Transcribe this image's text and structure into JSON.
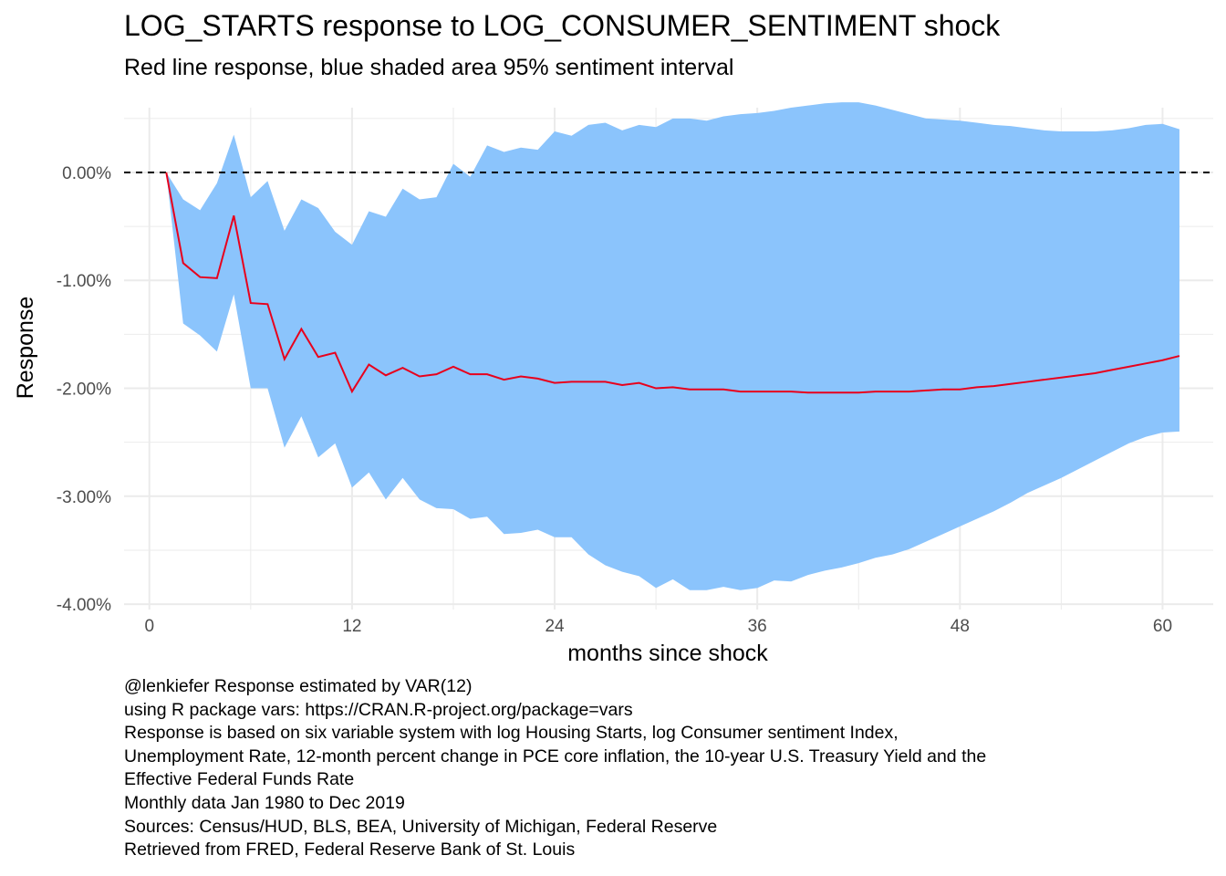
{
  "chart_data": {
    "type": "line",
    "title": "LOG_STARTS response to LOG_CONSUMER_SENTIMENT shock",
    "subtitle": "Red line response, blue shaded area 95% sentiment interval",
    "xlabel": "months since shock",
    "ylabel": "Response",
    "xlim": [
      -1.5,
      63
    ],
    "ylim": [
      -0.0405,
      0.006
    ],
    "x_ticks": [
      0,
      12,
      24,
      36,
      48,
      60
    ],
    "x_tick_labels": [
      "0",
      "12",
      "24",
      "36",
      "48",
      "60"
    ],
    "y_ticks": [
      0,
      -0.01,
      -0.02,
      -0.03,
      -0.04
    ],
    "y_tick_labels": [
      "0.00%",
      "-1.00%",
      "-2.00%",
      "-3.00%",
      "-4.00%"
    ],
    "grid": true,
    "reference_line": 0,
    "colors": {
      "line": "#e8001c",
      "band": "#8bc4fc",
      "reference": "#000000",
      "grid": "#ebebeb"
    },
    "x": [
      1,
      2,
      3,
      4,
      5,
      6,
      7,
      8,
      9,
      10,
      11,
      12,
      13,
      14,
      15,
      16,
      17,
      18,
      19,
      20,
      21,
      22,
      23,
      24,
      25,
      26,
      27,
      28,
      29,
      30,
      31,
      32,
      33,
      34,
      35,
      36,
      37,
      38,
      39,
      40,
      41,
      42,
      43,
      44,
      45,
      46,
      47,
      48,
      49,
      50,
      51,
      52,
      53,
      54,
      55,
      56,
      57,
      58,
      59,
      60,
      61
    ],
    "series": [
      {
        "values": [
          0,
          -0.0084,
          -0.0097,
          -0.0098,
          -0.004,
          -0.0121,
          -0.0122,
          -0.0173,
          -0.0145,
          -0.0171,
          -0.0167,
          -0.0203,
          -0.0178,
          -0.0188,
          -0.0181,
          -0.0189,
          -0.0187,
          -0.018,
          -0.0187,
          -0.0187,
          -0.0192,
          -0.0189,
          -0.0191,
          -0.0195,
          -0.0194,
          -0.0194,
          -0.0194,
          -0.0197,
          -0.0195,
          -0.02,
          -0.0199,
          -0.0201,
          -0.0201,
          -0.0201,
          -0.0203,
          -0.0203,
          -0.0203,
          -0.0203,
          -0.0204,
          -0.0204,
          -0.0204,
          -0.0204,
          -0.0203,
          -0.0203,
          -0.0203,
          -0.0202,
          -0.0201,
          -0.0201,
          -0.0199,
          -0.0198,
          -0.0196,
          -0.0194,
          -0.0192,
          -0.019,
          -0.0188,
          -0.0186,
          -0.0183,
          -0.018,
          -0.0177,
          -0.0174,
          -0.017
        ]
      }
    ],
    "band": {
      "upper": [
        0,
        -0.0025,
        -0.0035,
        -0.001,
        0.0035,
        -0.0023,
        -0.0008,
        -0.0054,
        -0.0025,
        -0.0033,
        -0.0055,
        -0.0067,
        -0.0036,
        -0.0041,
        -0.0015,
        -0.0025,
        -0.0023,
        0.0008,
        -0.0004,
        0.0025,
        0.0019,
        0.0023,
        0.0021,
        0.0038,
        0.0034,
        0.0044,
        0.0046,
        0.0039,
        0.0044,
        0.0042,
        0.005,
        0.005,
        0.0048,
        0.0052,
        0.0054,
        0.0055,
        0.0057,
        0.006,
        0.0062,
        0.0064,
        0.0065,
        0.0065,
        0.0062,
        0.0058,
        0.0054,
        0.005,
        0.0049,
        0.0048,
        0.0046,
        0.0044,
        0.0043,
        0.0041,
        0.0039,
        0.0038,
        0.0038,
        0.0038,
        0.0039,
        0.0041,
        0.0044,
        0.0045,
        0.004
      ],
      "lower": [
        0,
        -0.014,
        -0.0151,
        -0.0166,
        -0.0113,
        -0.02,
        -0.02,
        -0.0255,
        -0.0226,
        -0.0264,
        -0.0251,
        -0.0292,
        -0.0278,
        -0.0303,
        -0.0283,
        -0.0303,
        -0.0311,
        -0.0312,
        -0.0321,
        -0.0319,
        -0.0335,
        -0.0334,
        -0.0331,
        -0.0338,
        -0.0338,
        -0.0354,
        -0.0364,
        -0.037,
        -0.0374,
        -0.0385,
        -0.0377,
        -0.0387,
        -0.0387,
        -0.0384,
        -0.0387,
        -0.0385,
        -0.0378,
        -0.0379,
        -0.0373,
        -0.0369,
        -0.0366,
        -0.0362,
        -0.0357,
        -0.0354,
        -0.0349,
        -0.0342,
        -0.0335,
        -0.0328,
        -0.0321,
        -0.0314,
        -0.0306,
        -0.0297,
        -0.029,
        -0.0283,
        -0.0275,
        -0.0267,
        -0.0259,
        -0.0251,
        -0.0245,
        -0.0241,
        -0.024
      ]
    },
    "caption_lines": [
      "@lenkiefer Response estimated by VAR(12)",
      "using R package vars: https://CRAN.R-project.org/package=vars",
      "Response is based on six variable system with log Housing Starts, log Consumer sentiment Index,",
      "Unemployment Rate, 12-month percent change in PCE core inflation, the 10-year U.S. Treasury Yield and the",
      "Effective Federal Funds Rate",
      "Monthly data Jan 1980 to Dec 2019",
      "Sources: Census/HUD, BLS, BEA, University of Michigan, Federal Reserve",
      "Retrieved from FRED, Federal Reserve Bank of St. Louis"
    ]
  }
}
